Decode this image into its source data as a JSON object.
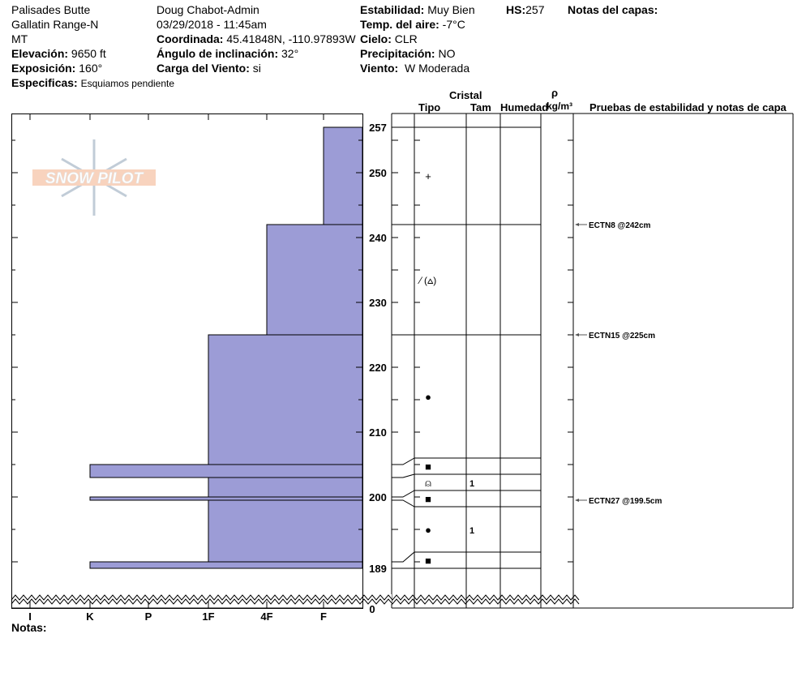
{
  "header": {
    "location": "Palisades Butte",
    "range": "Gallatin Range-N",
    "state": "MT",
    "elevation_label": "Elevación:",
    "elevation": "9650 ft",
    "aspect_label": "Exposición:",
    "aspect": "160°",
    "specifics_label": "Especificas:",
    "specifics": "Esquiamos pendiente",
    "observer": "Doug Chabot-Admin",
    "datetime": "03/29/2018 - 11:45am",
    "coord_label": "Coordinada:",
    "coord": "45.41848N, -110.97893W",
    "slope_label": "Ángulo de inclinación:",
    "slope": "32°",
    "windload_label": "Carga del Viento:",
    "windload": "si",
    "stability_label": "Estabilidad:",
    "stability": "Muy Bien",
    "airtemp_label": "Temp. del aire:",
    "airtemp": "-7°C",
    "sky_label": "Cielo:",
    "sky": "CLR",
    "precip_label": "Precipitación:",
    "precip": "NO",
    "wind_label": "Viento:",
    "wind": "W Moderada",
    "hs_label": "HS:",
    "hs": "257",
    "layer_notes_label": "Notas del capas:"
  },
  "logo": {
    "text": "SNOW PILOT"
  },
  "table_headers": {
    "cristal": "Cristal",
    "tipo": "Tipo",
    "tam": "Tam",
    "humedad": "Humedad",
    "rho": "ρ",
    "density_unit": "kg/m³",
    "tests": "Pruebas de estabilidad y notas de capa"
  },
  "notes_label": "Notas:",
  "colors": {
    "hardness_fill": "#9c9cd6"
  },
  "chart_data": {
    "type": "snow-profile",
    "y_unit": "cm",
    "ylim": [
      189,
      257
    ],
    "y_ticks": [
      "257",
      "250",
      "240",
      "230",
      "220",
      "210",
      "200",
      "189"
    ],
    "y_bottom_label": "0",
    "hardness_scale": [
      "I",
      "K",
      "P",
      "1F",
      "4F",
      "F"
    ],
    "layers": [
      {
        "top": 257,
        "bottom": 242,
        "hardness": "F"
      },
      {
        "top": 242,
        "bottom": 225,
        "hardness": "4F"
      },
      {
        "top": 225,
        "bottom": 205,
        "hardness": "1F"
      },
      {
        "top": 205,
        "bottom": 203,
        "hardness": "K"
      },
      {
        "top": 203,
        "bottom": 200,
        "hardness": "1F"
      },
      {
        "top": 200,
        "bottom": 199.5,
        "hardness": "K"
      },
      {
        "top": 199.5,
        "bottom": 190,
        "hardness": "1F"
      },
      {
        "top": 190,
        "bottom": 189,
        "hardness": "K"
      }
    ],
    "crystals": [
      {
        "type": "+",
        "size": ""
      },
      {
        "type": "⁄ (⩟)",
        "size": ""
      },
      {
        "type": "●",
        "size": ""
      },
      {
        "type": "■",
        "size": ""
      },
      {
        "type": "⍝",
        "size": "1"
      },
      {
        "type": "■",
        "size": ""
      },
      {
        "type": "●",
        "size": "1"
      },
      {
        "type": "■",
        "size": ""
      }
    ],
    "tests": [
      {
        "depth": 242,
        "label": "ECTN8 @242cm"
      },
      {
        "depth": 225,
        "label": "ECTN15 @225cm"
      },
      {
        "depth": 199.5,
        "label": "ECTN27 @199.5cm"
      }
    ]
  }
}
